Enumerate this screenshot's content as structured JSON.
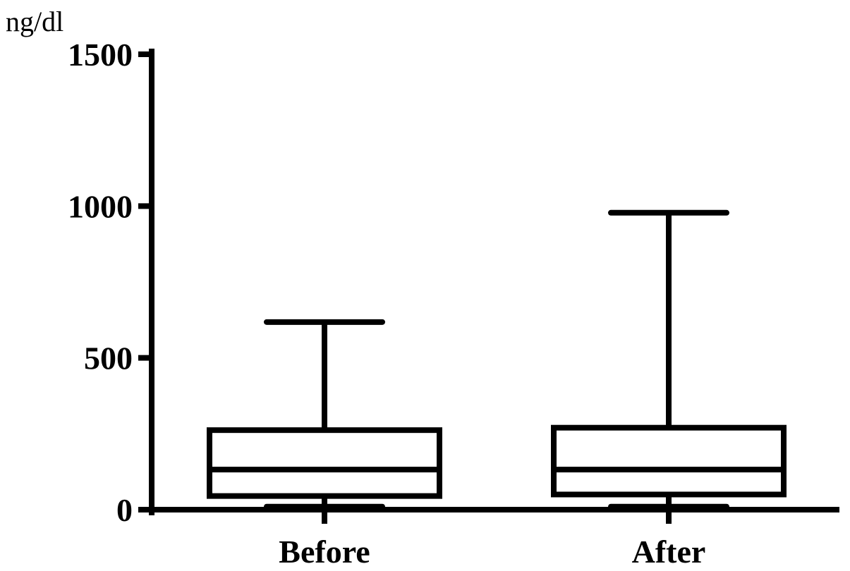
{
  "chart_data": {
    "type": "boxplot",
    "ylabel": "ng/dl",
    "ylim": [
      0,
      1500
    ],
    "yticks": [
      0,
      500,
      1000,
      1500
    ],
    "ytick_labels": [
      "0",
      "500",
      "1000",
      "1500"
    ],
    "categories": [
      "Before",
      "After"
    ],
    "boxes": [
      {
        "category": "Before",
        "min": 10,
        "q1": 45,
        "median": 132,
        "q3": 262,
        "max": 618
      },
      {
        "category": "After",
        "min": 10,
        "q1": 50,
        "median": 132,
        "q3": 270,
        "max": 978
      }
    ],
    "color": "#000000",
    "grid": false
  }
}
